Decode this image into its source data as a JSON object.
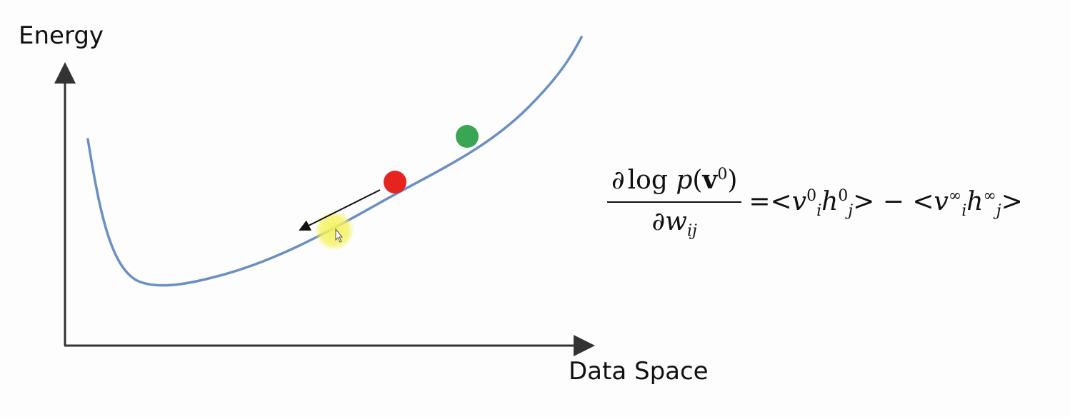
{
  "diagram": {
    "y_axis_label": "Energy",
    "x_axis_label": "Data Space",
    "colors": {
      "curve": "#6a8fc4",
      "axes": "#333333",
      "green_point": "#3aa655",
      "red_point": "#e5231f",
      "cursor_highlight": "#f4f25a",
      "arrow": "#111111"
    },
    "points": [
      {
        "name": "green-point",
        "color": "green"
      },
      {
        "name": "red-point",
        "color": "red"
      }
    ],
    "cursor": "pointer-cursor-icon"
  },
  "formula": {
    "numerator": {
      "partial": "∂",
      "log": "log",
      "p": "p",
      "open": "(",
      "v": "v",
      "v_sup": "0",
      "close": ")"
    },
    "denominator": {
      "partial": "∂",
      "w": "w",
      "w_sub": "ij"
    },
    "rhs": {
      "equals": "=",
      "lt1": "<",
      "v1": "v",
      "v1_sub": "i",
      "v1_sup": "0",
      "h1": "h",
      "h1_sub": "j",
      "h1_sup": "0",
      "gt1": ">",
      "minus": " − ",
      "lt2": "<",
      "v2": "v",
      "v2_sub": "i",
      "v2_sup": "∞",
      "h2": "h",
      "h2_sub": "j",
      "h2_sup": "∞",
      "gt2": ">"
    }
  }
}
